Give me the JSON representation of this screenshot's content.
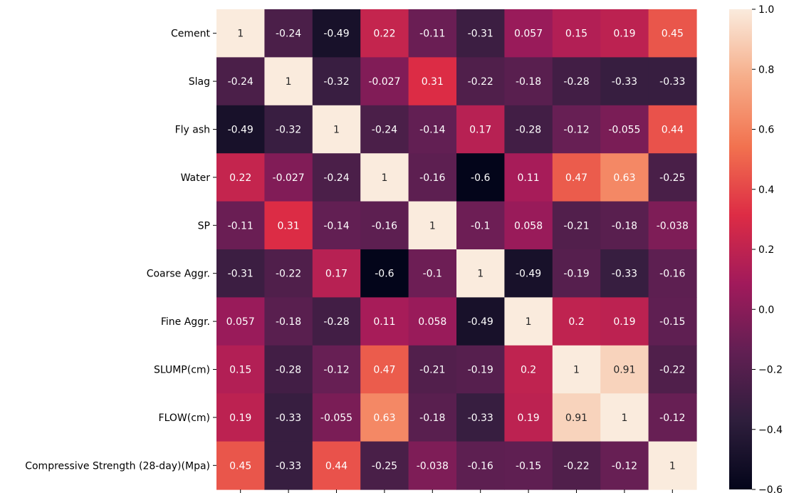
{
  "chart_data": {
    "type": "heatmap",
    "title": "",
    "xlabel": "",
    "ylabel": "",
    "row_labels": [
      "Cement",
      "Slag",
      "Fly ash",
      "Water",
      "SP",
      "Coarse Aggr.",
      "Fine Aggr.",
      "SLUMP(cm)",
      "FLOW(cm)",
      "Compressive Strength (28-day)(Mpa)"
    ],
    "column_labels": [],
    "matrix": [
      [
        1,
        -0.24,
        -0.49,
        0.22,
        -0.11,
        -0.31,
        0.057,
        0.15,
        0.19,
        0.45
      ],
      [
        -0.24,
        1,
        -0.32,
        -0.027,
        0.31,
        -0.22,
        -0.18,
        -0.28,
        -0.33,
        -0.33
      ],
      [
        -0.49,
        -0.32,
        1,
        -0.24,
        -0.14,
        0.17,
        -0.28,
        -0.12,
        -0.055,
        0.44
      ],
      [
        0.22,
        -0.027,
        -0.24,
        1,
        -0.16,
        -0.6,
        0.11,
        0.47,
        0.63,
        -0.25
      ],
      [
        -0.11,
        0.31,
        -0.14,
        -0.16,
        1,
        -0.1,
        0.058,
        -0.21,
        -0.18,
        -0.038
      ],
      [
        -0.31,
        -0.22,
        0.17,
        -0.6,
        -0.1,
        1,
        -0.49,
        -0.19,
        -0.33,
        -0.16
      ],
      [
        0.057,
        -0.18,
        -0.28,
        0.11,
        0.058,
        -0.49,
        1,
        0.2,
        0.19,
        -0.15
      ],
      [
        0.15,
        -0.28,
        -0.12,
        0.47,
        -0.21,
        -0.19,
        0.2,
        1,
        0.91,
        -0.22
      ],
      [
        0.19,
        -0.33,
        -0.055,
        0.63,
        -0.18,
        -0.33,
        0.19,
        0.91,
        1,
        -0.12
      ],
      [
        0.45,
        -0.33,
        0.44,
        -0.25,
        -0.038,
        -0.16,
        -0.15,
        -0.22,
        -0.12,
        1
      ]
    ],
    "cell_text": [
      [
        "1",
        "-0.24",
        "-0.49",
        "0.22",
        "-0.11",
        "-0.31",
        "0.057",
        "0.15",
        "0.19",
        "0.45"
      ],
      [
        "-0.24",
        "1",
        "-0.32",
        "-0.027",
        "0.31",
        "-0.22",
        "-0.18",
        "-0.28",
        "-0.33",
        "-0.33"
      ],
      [
        "-0.49",
        "-0.32",
        "1",
        "-0.24",
        "-0.14",
        "0.17",
        "-0.28",
        "-0.12",
        "-0.055",
        "0.44"
      ],
      [
        "0.22",
        "-0.027",
        "-0.24",
        "1",
        "-0.16",
        "-0.6",
        "0.11",
        "0.47",
        "0.63",
        "-0.25"
      ],
      [
        "-0.11",
        "0.31",
        "-0.14",
        "-0.16",
        "1",
        "-0.1",
        "0.058",
        "-0.21",
        "-0.18",
        "-0.038"
      ],
      [
        "-0.31",
        "-0.22",
        "0.17",
        "-0.6",
        "-0.1",
        "1",
        "-0.49",
        "-0.19",
        "-0.33",
        "-0.16"
      ],
      [
        "0.057",
        "-0.18",
        "-0.28",
        "0.11",
        "0.058",
        "-0.49",
        "1",
        "0.2",
        "0.19",
        "-0.15"
      ],
      [
        "0.15",
        "-0.28",
        "-0.12",
        "0.47",
        "-0.21",
        "-0.19",
        "0.2",
        "1",
        "0.91",
        "-0.22"
      ],
      [
        "0.19",
        "-0.33",
        "-0.055",
        "0.63",
        "-0.18",
        "-0.33",
        "0.19",
        "0.91",
        "1",
        "-0.12"
      ],
      [
        "0.45",
        "-0.33",
        "0.44",
        "-0.25",
        "-0.038",
        "-0.16",
        "-0.15",
        "-0.22",
        "-0.12",
        "1"
      ]
    ],
    "color_scale": {
      "name": "rocket",
      "vmin": -0.6,
      "vmax": 1.0,
      "stops": [
        "#03051a",
        "#2e1e3c",
        "#611f53",
        "#a11a5b",
        "#dd2c45",
        "#f2724f",
        "#f6ad89",
        "#faebdd"
      ]
    },
    "colorbar": {
      "ticks": [
        1.0,
        0.8,
        0.6,
        0.4,
        0.2,
        0.0,
        -0.2,
        -0.4,
        -0.6
      ],
      "tick_labels": [
        "1.0",
        "0.8",
        "0.6",
        "0.4",
        "0.2",
        "0.0",
        "−0.2",
        "−0.4",
        "−0.6"
      ]
    },
    "legend": "colorbar-right",
    "grid": false
  }
}
